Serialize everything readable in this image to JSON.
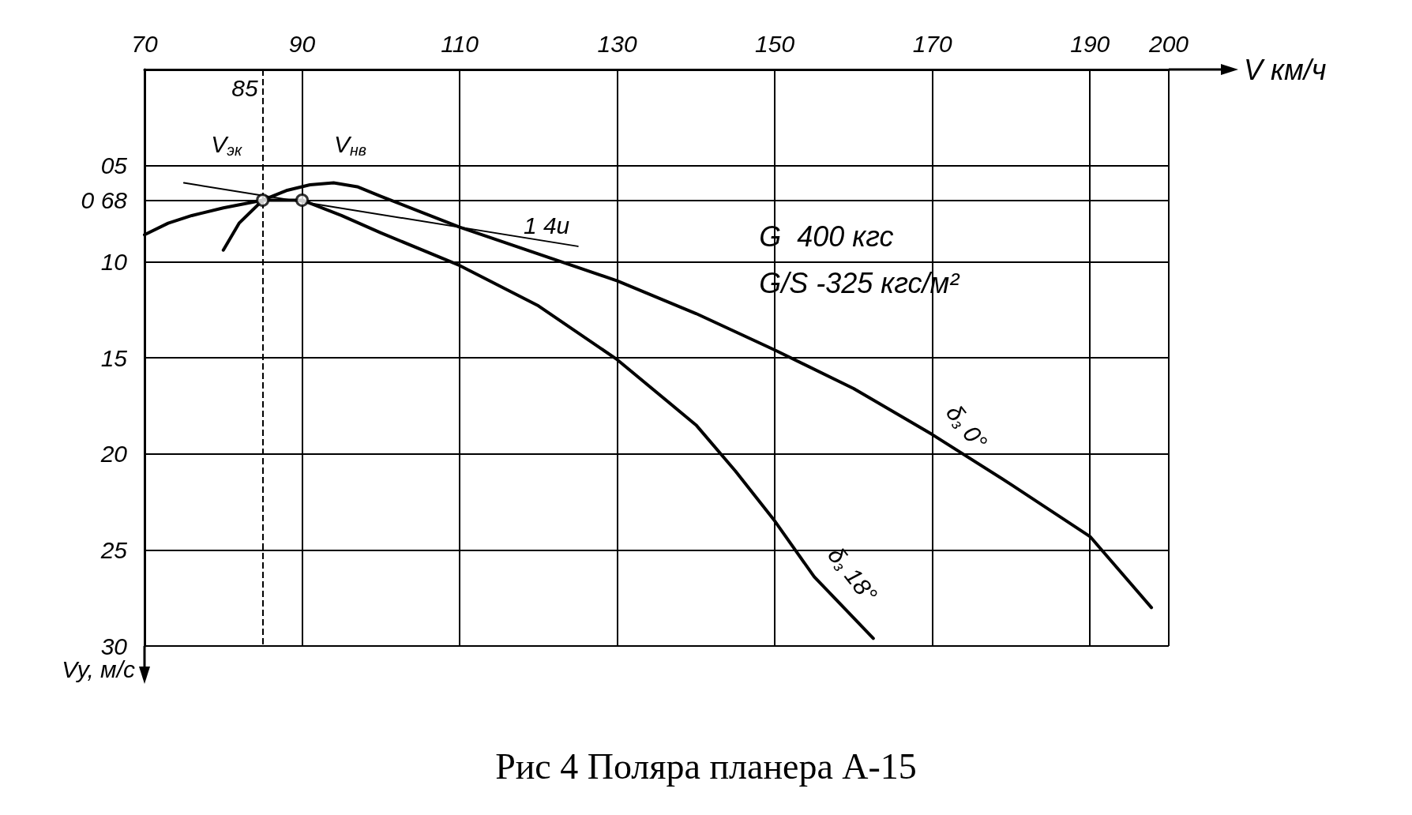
{
  "chart_data": {
    "type": "line",
    "title": "Рис 4 Поляра планера А-15",
    "xlabel": "V км/ч",
    "ylabel": "Vy, м/с",
    "xlim": [
      70,
      200
    ],
    "xticks": [
      70,
      90,
      110,
      130,
      150,
      170,
      190,
      200
    ],
    "ylim": [
      30,
      0
    ],
    "yticks": [
      {
        "value": 5,
        "label": "05"
      },
      {
        "value": 6.8,
        "label": "0 68"
      },
      10,
      15,
      20,
      25,
      30
    ],
    "grid": true,
    "marker": "none",
    "line_style": "solid",
    "series": [
      {
        "name": "δ$_{з}$ 0°",
        "color": "#000000",
        "x": [
          80,
          82,
          85,
          88,
          91,
          94,
          97,
          100,
          105,
          110,
          120,
          130,
          140,
          150,
          160,
          170,
          180,
          190,
          197.8
        ],
        "values": [
          9.4,
          8,
          6.8,
          6.3,
          6,
          5.9,
          6.1,
          6.6,
          7.4,
          8.2,
          9.6,
          11,
          12.7,
          14.6,
          16.6,
          19,
          21.6,
          24.3,
          28
        ]
      },
      {
        "name": "δ$_{з}$ 18°",
        "color": "#000000",
        "x": [
          70,
          73,
          76,
          80,
          85,
          90,
          95,
          100,
          110,
          120,
          130,
          140,
          145,
          150,
          155,
          162.5
        ],
        "values": [
          8.6,
          8,
          7.6,
          7.2,
          6.8,
          6.8,
          7.6,
          8.5,
          10.2,
          12.3,
          15.1,
          18.5,
          20.9,
          23.5,
          26.4,
          29.6
        ]
      },
      {
        "type": "line",
        "color": "#000000",
        "x": [
          75,
          125
        ],
        "values": [
          5.9,
          9.2
        ]
      },
      {
        "type": "scatter",
        "marker": "circle",
        "color": "#000000",
        "x": [
          85,
          90
        ],
        "values": [
          6.8,
          6.8
        ]
      }
    ],
    "ref_lines": [
      {
        "axis": "x",
        "value": 85,
        "label": "85",
        "line_style": "dashed"
      }
    ],
    "annotations": [
      "V$_{эк}$",
      "V$_{нв}$",
      "1 4u",
      "G  400 кгс",
      "G/S -325 кгс/м²"
    ]
  }
}
